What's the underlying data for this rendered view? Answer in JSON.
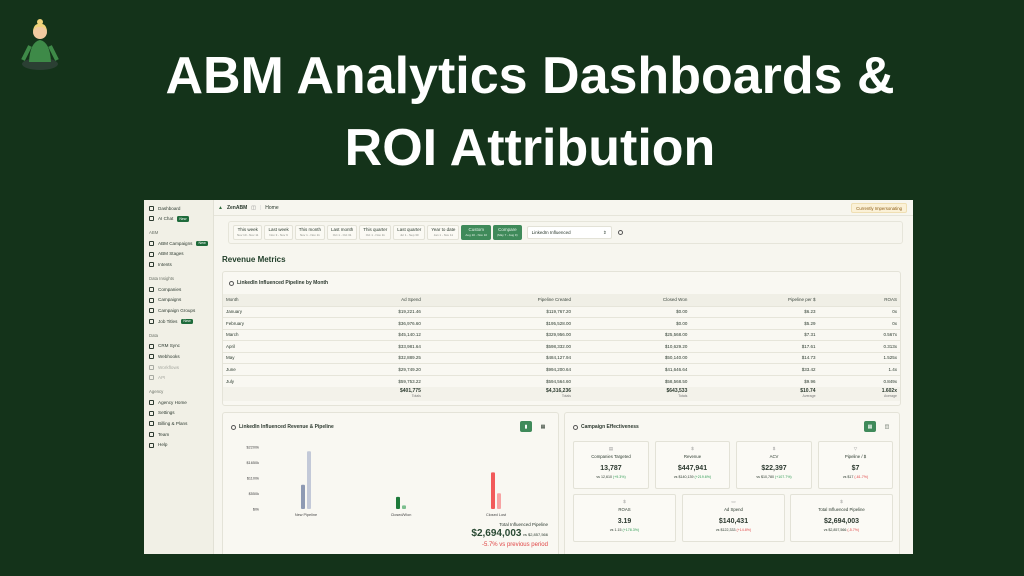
{
  "hero": {
    "title_line1": "ABM Analytics Dashboards &",
    "title_line2": "ROI Attribution",
    "avatar_icon": "meditating-woman-emoji"
  },
  "colors": {
    "background": "#14331a",
    "accent": "#3f8a5a",
    "positive": "#2e9b52",
    "negative": "#e04545"
  },
  "sidebar": {
    "items_top": [
      {
        "label": "Dashboard",
        "icon": "grid-icon"
      },
      {
        "label": "AI Chat",
        "icon": "chat-icon",
        "badge": "New"
      }
    ],
    "sections": [
      {
        "title": "ABM",
        "items": [
          {
            "label": "ABM Campaigns",
            "badge": "New"
          },
          {
            "label": "ABM Stages"
          },
          {
            "label": "Intents"
          }
        ]
      },
      {
        "title": "Data Insights",
        "items": [
          {
            "label": "Companies"
          },
          {
            "label": "Campaigns"
          },
          {
            "label": "Campaign Groups"
          },
          {
            "label": "Job Titles",
            "badge": "New"
          }
        ]
      },
      {
        "title": "Data",
        "items": [
          {
            "label": "CRM Sync"
          },
          {
            "label": "Webhooks"
          },
          {
            "label": "Workflows",
            "disabled": true
          },
          {
            "label": "API",
            "disabled": true
          }
        ]
      },
      {
        "title": "Agency",
        "items": [
          {
            "label": "Agency Home"
          },
          {
            "label": "Settings"
          },
          {
            "label": "Billing & Plans"
          },
          {
            "label": "Team"
          },
          {
            "label": "Help"
          }
        ]
      }
    ]
  },
  "topbar": {
    "brand": "ZenABM",
    "breadcrumb": "Home",
    "impersonating": "Currently Impersonating"
  },
  "filters": {
    "buttons": [
      {
        "label": "This week",
        "range": "Nov 10 - Nov 11"
      },
      {
        "label": "Last week",
        "range": "Nov 3 - Nov 9"
      },
      {
        "label": "This month",
        "range": "Nov 1 - Nov 11"
      },
      {
        "label": "Last month",
        "range": "Oct 1 - Oct 31"
      },
      {
        "label": "This quarter",
        "range": "Oct 1 - Nov 11"
      },
      {
        "label": "Last quarter",
        "range": "Jul 1 - Sep 30"
      },
      {
        "label": "Year to date",
        "range": "Jan 1 - Nov 11"
      },
      {
        "label": "Custom",
        "range": "Aug 10 - Nov 10",
        "active": true
      },
      {
        "label": "Compare",
        "range": "(May 7 - Aug 9)",
        "active": true
      }
    ],
    "select_value": "LinkedIn Influenced"
  },
  "section_title": "Revenue Metrics",
  "table": {
    "title": "LinkedIn Influenced Pipeline by Month",
    "columns": [
      "Month",
      "Ad Spend",
      "Pipeline Created",
      "Closed Won",
      "Pipeline per $",
      "ROAS"
    ],
    "rows": [
      [
        "January",
        "$19,221.46",
        "$119,767.20",
        "$0.00",
        "$6.23",
        "0x"
      ],
      [
        "February",
        "$36,976.60",
        "$195,528.00",
        "$0.00",
        "$5.29",
        "0x"
      ],
      [
        "March",
        "$45,140.12",
        "$329,956.00",
        "$25,568.00",
        "$7.31",
        "0.567x"
      ],
      [
        "April",
        "$33,981.64",
        "$598,332.00",
        "$10,629.20",
        "$17.61",
        "0.313x"
      ],
      [
        "May",
        "$32,889.25",
        "$484,127.94",
        "$50,140.00",
        "$14.73",
        "1.525x"
      ],
      [
        "June",
        "$29,749.20",
        "$994,200.64",
        "$41,646.64",
        "$33.42",
        "1.4x"
      ],
      [
        "July",
        "$59,753.22",
        "$594,564.60",
        "$58,568.50",
        "$9.96",
        "0.849x"
      ]
    ],
    "totals": [
      [
        "",
        ""
      ],
      [
        "$401,775",
        "Totals"
      ],
      [
        "$4,316,236",
        "Totals"
      ],
      [
        "$643,533",
        "Totals"
      ],
      [
        "$10.74",
        "Average"
      ],
      [
        "1.602x",
        "Average"
      ]
    ]
  },
  "revenue_chart": {
    "title": "LinkedIn Influenced Revenue & Pipeline",
    "total_label": "Total Influenced Pipeline",
    "total_value": "$2,694,003",
    "total_compare": "vs $2,857,566",
    "total_change": "-5.7% vs previous period"
  },
  "chart_data": {
    "type": "bar",
    "categories": [
      "New Pipeline",
      "Closed/Won",
      "Closed Lost"
    ],
    "series": [
      {
        "values": [
          860,
          430,
          1300
        ]
      },
      {
        "values": [
          2050,
          130,
          560
        ]
      }
    ],
    "yticks": [
      "$0k",
      "$550k",
      "$1100k",
      "$1650k",
      "$2200k"
    ],
    "ylim": [
      0,
      2200
    ],
    "unit": "k USD",
    "grid": false,
    "colors": [
      [
        "#8e9ab3",
        "#c3c9d8"
      ],
      [
        "#1e7a3a",
        "#7cbf8e"
      ],
      [
        "#f25a5a",
        "#f7a3a3"
      ]
    ]
  },
  "effectiveness": {
    "title": "Campaign Effectiveness",
    "kpis": [
      {
        "icon": "building-icon",
        "label": "Companies Targeted",
        "value": "13,787",
        "compare": "vs 12,610",
        "change": "(+9.3%)",
        "trend": "up"
      },
      {
        "icon": "dollar-icon",
        "label": "Revenue",
        "value": "$447,941",
        "compare": "vs $140,139",
        "change": "(+219.6%)",
        "trend": "up"
      },
      {
        "icon": "dollar-icon",
        "label": "ACV",
        "value": "$22,397",
        "compare": "vs $10,780",
        "change": "(+107.7%)",
        "trend": "up"
      },
      {
        "icon": "funnel-icon",
        "label": "Pipeline / $",
        "value": "$7",
        "compare": "vs $17",
        "change": "(-61.7%)",
        "trend": "down"
      },
      {
        "icon": "dollar-icon",
        "label": "ROAS",
        "value": "3.19",
        "compare": "vs 1.15",
        "change": "(+178.3%)",
        "trend": "up"
      },
      {
        "icon": "card-icon",
        "label": "Ad Spend",
        "value": "$140,431",
        "compare": "vs $122,333",
        "change": "(+14.8%)",
        "trend": "dn"
      },
      {
        "icon": "dollar-icon",
        "label": "Total Influenced Pipeline",
        "value": "$2,694,003",
        "compare": "vs $2,857,566",
        "change": "(-5.7%)",
        "trend": "down"
      }
    ]
  }
}
